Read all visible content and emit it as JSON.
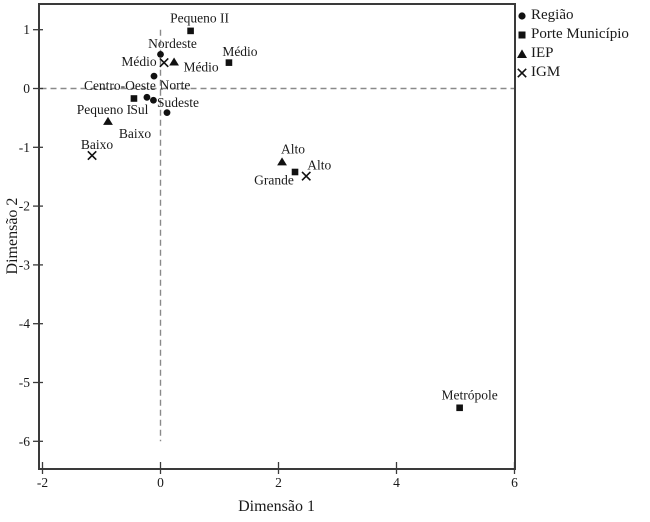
{
  "chart_data": {
    "type": "scatter",
    "title": "",
    "xlabel": "Dimensão 1",
    "ylabel": "Dimensão 2",
    "xlim": [
      -2.08,
      6.02
    ],
    "ylim": [
      -6.48,
      1.45
    ],
    "x_ticks": [
      -2,
      0,
      2,
      4,
      6
    ],
    "y_ticks": [
      1,
      0,
      -1,
      -2,
      -3,
      -4,
      -5,
      -6
    ],
    "grid": false,
    "reference_lines": {
      "vertical_at_x": 0,
      "horizontal_at_y": 0,
      "style": "dashed"
    },
    "legend_position": "top-right-outside",
    "legend": [
      {
        "label": "Região",
        "marker": "circle"
      },
      {
        "label": "Porte Município",
        "marker": "square"
      },
      {
        "label": "IEP",
        "marker": "triangle"
      },
      {
        "label": "IGM",
        "marker": "cross"
      }
    ],
    "series": [
      {
        "name": "Região",
        "marker": "circle",
        "points": [
          {
            "label": "Nordeste",
            "x": 0.0,
            "y": 0.58,
            "label_dx": 12,
            "label_dy": -11
          },
          {
            "label": "Norte",
            "x": -0.11,
            "y": 0.21,
            "label_dx": 21,
            "label_dy": 9
          },
          {
            "label": "Centro-Oeste",
            "x": -0.23,
            "y": -0.15,
            "label_dx": -27,
            "label_dy": -12
          },
          {
            "label": "Sul",
            "x": -0.12,
            "y": -0.2,
            "label_dx": -14,
            "label_dy": 9
          },
          {
            "label": "Sudeste",
            "x": 0.11,
            "y": -0.41,
            "label_dx": 11,
            "label_dy": -10
          }
        ]
      },
      {
        "name": "Porte Município",
        "marker": "square",
        "points": [
          {
            "label": "Pequeno II",
            "x": 0.51,
            "y": 0.98,
            "label_dx": 9,
            "label_dy": -13
          },
          {
            "label": "Médio",
            "x": 1.16,
            "y": 0.44,
            "label_dx": 11,
            "label_dy": -11
          },
          {
            "label": "Pequeno I",
            "x": -0.45,
            "y": -0.17,
            "label_dx": -30,
            "label_dy": 11
          },
          {
            "label": "Grande",
            "x": 2.28,
            "y": -1.42,
            "label_dx": -21,
            "label_dy": 8
          },
          {
            "label": "Metrópole",
            "x": 5.07,
            "y": -5.43,
            "label_dx": 10,
            "label_dy": -13
          }
        ]
      },
      {
        "name": "IEP",
        "marker": "triangle",
        "points": [
          {
            "label": "Médio",
            "x": 0.23,
            "y": 0.45,
            "label_dx": 27,
            "label_dy": 5
          },
          {
            "label": "Baixo",
            "x": -0.89,
            "y": -0.56,
            "label_dx": 27,
            "label_dy": 12
          },
          {
            "label": "Alto",
            "x": 2.06,
            "y": -1.25,
            "label_dx": 11,
            "label_dy": -13
          }
        ]
      },
      {
        "name": "IGM",
        "marker": "cross",
        "points": [
          {
            "label": "Médio",
            "x": 0.06,
            "y": 0.44,
            "label_dx": -25,
            "label_dy": -1
          },
          {
            "label": "Baixo",
            "x": -1.16,
            "y": -1.14,
            "label_dx": 5,
            "label_dy": -11
          },
          {
            "label": "Alto",
            "x": 2.47,
            "y": -1.49,
            "label_dx": 13,
            "label_dy": -11
          }
        ]
      }
    ]
  },
  "colors": {
    "background": "#ffffff",
    "marker": "#111111",
    "axis": "#3a3a3a",
    "ref_line": "#8a8a8a",
    "text": "#1a1a1a"
  }
}
